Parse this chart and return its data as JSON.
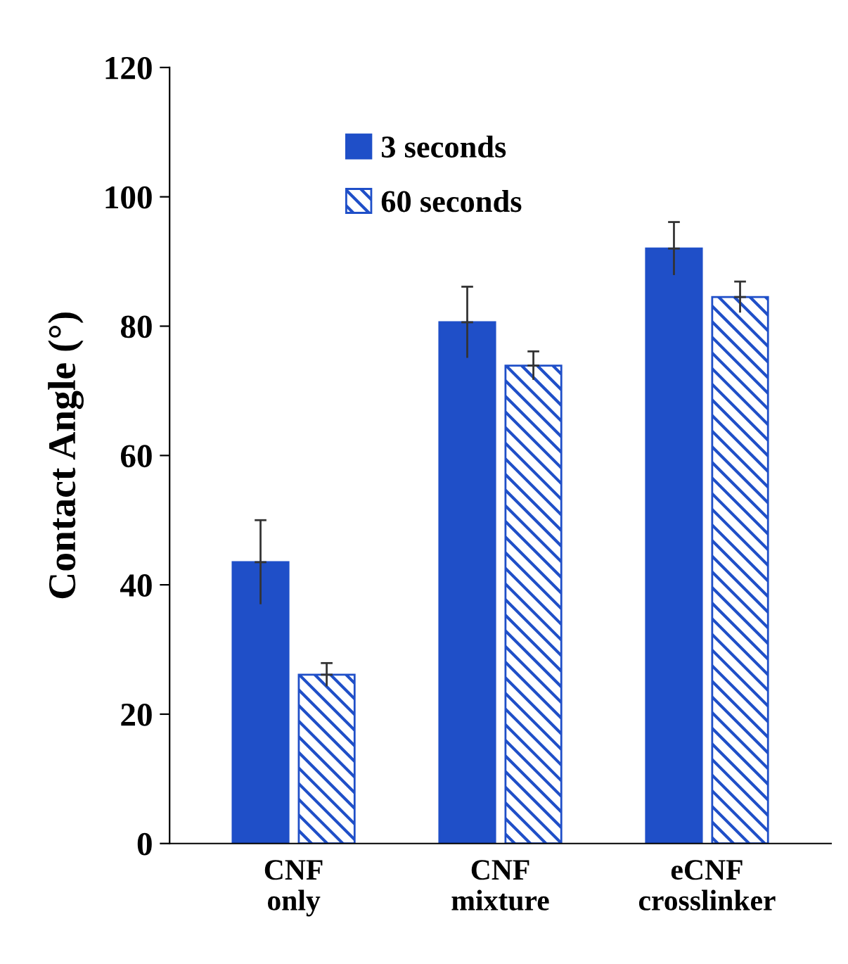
{
  "chart_data": {
    "type": "bar",
    "ylabel": "Contact Angle (°)",
    "categories": [
      "CNF\nonly",
      "CNF\nmixture",
      "eCNF\ncrosslinker"
    ],
    "series": [
      {
        "name": "3 seconds",
        "color": "#1f4fc8",
        "values": [
          43.5,
          80.6,
          92.0
        ],
        "errors": [
          6.5,
          5.5,
          4.1
        ]
      },
      {
        "name": "60 seconds",
        "color": "#1f4fc8",
        "values": [
          26.1,
          73.9,
          84.5
        ],
        "errors": [
          1.8,
          2.2,
          2.4
        ]
      }
    ],
    "ylim": [
      0,
      120
    ],
    "yticks": [
      0,
      20,
      40,
      60,
      80,
      100,
      120
    ],
    "grid": false,
    "legend": "top"
  }
}
